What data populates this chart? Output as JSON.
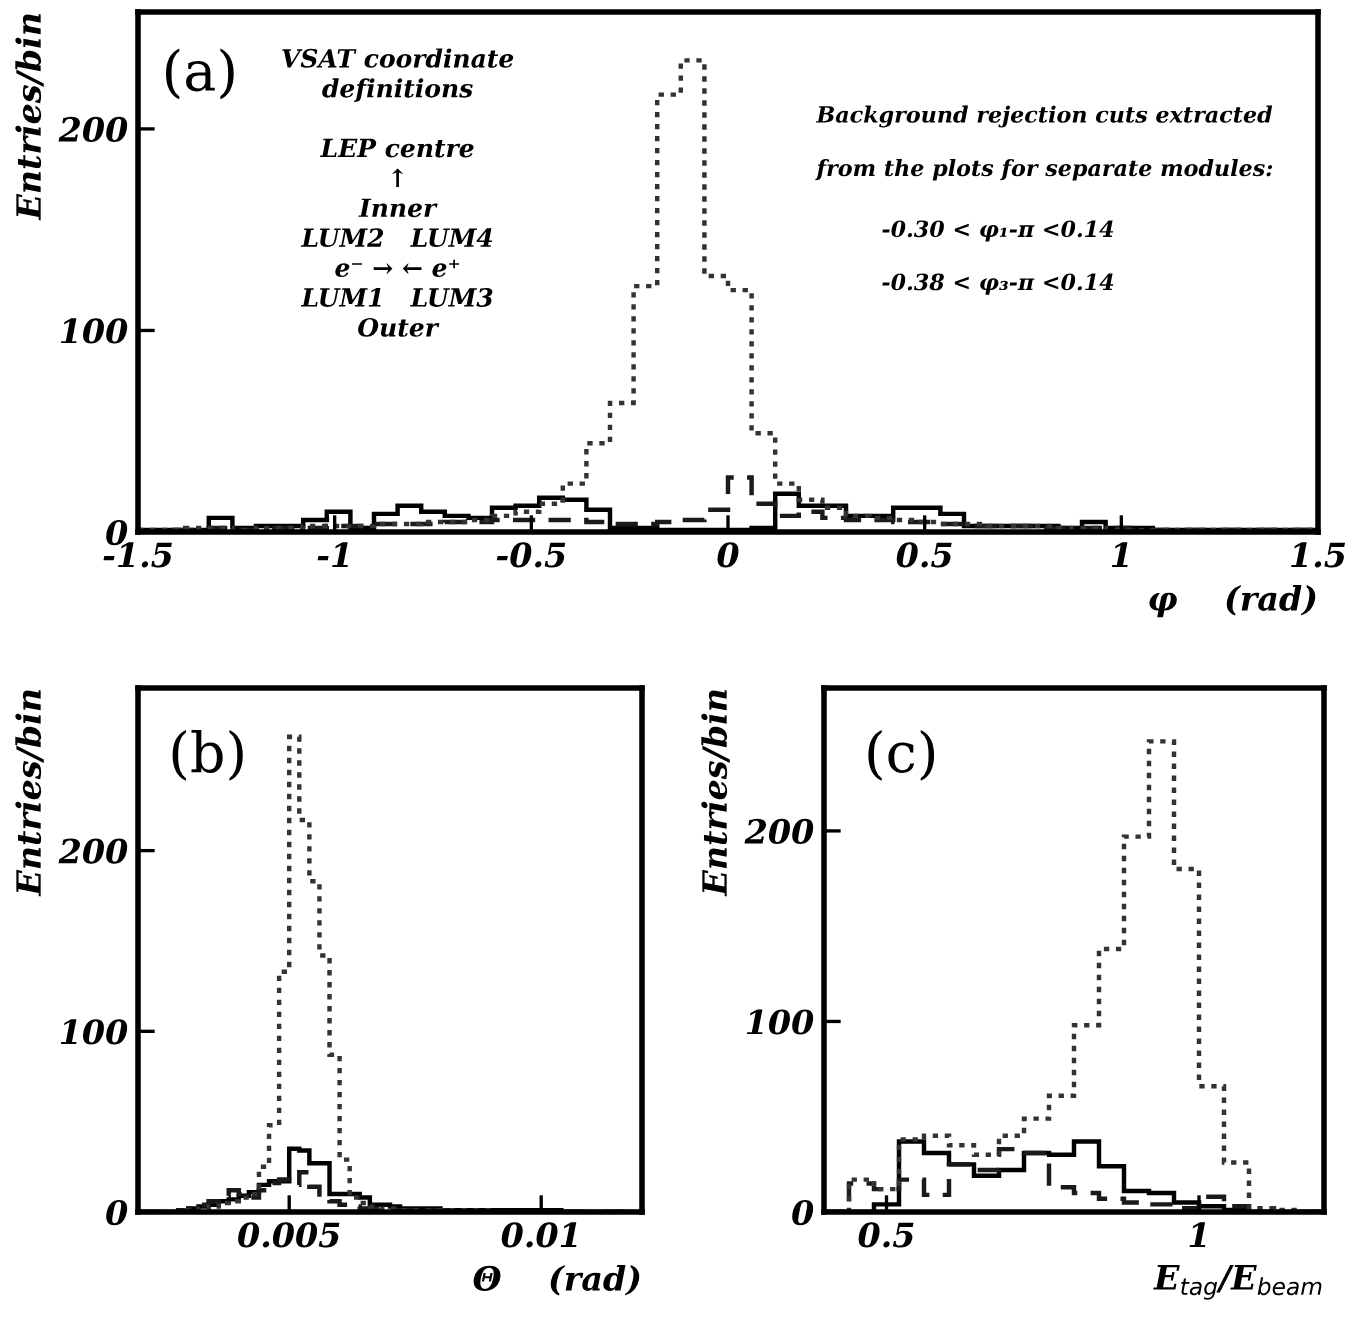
{
  "chart_data": [
    {
      "type": "histogram",
      "ylabel": "Entries/bin",
      "xlabel": "φ    (rad)",
      "xlim": [
        -1.5,
        1.5
      ],
      "xticks": [
        -1.5,
        -1,
        -0.5,
        0,
        0.5,
        1,
        1.5
      ],
      "ylim": [
        0,
        258
      ],
      "yticks": [
        0,
        100,
        200
      ],
      "bins": [
        -1.5,
        -1.44,
        -1.38,
        -1.32,
        -1.26,
        -1.2,
        -1.14,
        -1.08,
        -1.02,
        -0.96,
        -0.9,
        -0.84,
        -0.78,
        -0.72,
        -0.66,
        -0.6,
        -0.54,
        -0.48,
        -0.42,
        -0.36,
        -0.3,
        -0.24,
        -0.18,
        -0.12,
        -0.06,
        0,
        0.06,
        0.12,
        0.18,
        0.24,
        0.3,
        0.36,
        0.42,
        0.48,
        0.54,
        0.6,
        0.66,
        0.72,
        0.78,
        0.84,
        0.9,
        0.96,
        1.02,
        1.08,
        1.14,
        1.2,
        1.26,
        1.32,
        1.38,
        1.44,
        1.5
      ],
      "series": [
        {
          "color": "#000000",
          "line_style": "solid",
          "values": [
            1,
            1,
            1,
            7,
            2,
            3,
            3,
            6,
            10,
            2,
            9,
            13,
            10,
            8,
            7,
            12,
            13,
            17,
            16,
            11,
            2,
            2,
            1,
            1,
            1,
            1,
            2,
            19,
            13,
            13,
            8,
            8,
            12,
            12,
            9,
            3,
            3,
            3,
            3,
            2,
            5,
            2,
            2,
            1,
            1,
            1,
            1,
            1,
            1,
            1
          ]
        },
        {
          "color": "#1a1a1a",
          "line_style": "dashed",
          "values": [
            0,
            1,
            1,
            2,
            1,
            2,
            2,
            2,
            3,
            3,
            4,
            4,
            4,
            5,
            5,
            6,
            6,
            6,
            6,
            5,
            4,
            4,
            5,
            6,
            11,
            27,
            14,
            8,
            10,
            7,
            6,
            6,
            5,
            5,
            4,
            3,
            3,
            3,
            2,
            2,
            2,
            2,
            1,
            1,
            1,
            1,
            1,
            1,
            1,
            1
          ]
        },
        {
          "color": "#333333",
          "line_style": "dotted",
          "values": [
            1,
            1,
            2,
            2,
            1,
            2,
            2,
            3,
            3,
            3,
            4,
            4,
            5,
            5,
            6,
            8,
            10,
            14,
            24,
            44,
            64,
            122,
            217,
            234,
            127,
            120,
            49,
            24,
            16,
            12,
            8,
            7,
            6,
            5,
            4,
            4,
            3,
            3,
            3,
            2,
            2,
            1,
            1,
            1,
            1,
            1,
            1,
            1,
            1,
            1
          ]
        }
      ],
      "annotations": [
        "(a)",
        "VSAT coordinate\ndefinitions\n\nLEP centre\n↑\nInner\nLUM2   LUM4\ne⁻ → ← e⁺\nLUM1   LUM3\nOuter",
        "Background rejection cuts extracted\n\nfrom the plots for separate modules:",
        "-0.30 < φ₁-π <0.14\n\n-0.38 < φ₃-π <0.14"
      ]
    },
    {
      "type": "histogram",
      "ylabel": "Entries/bin",
      "xlabel": "Θ    (rad)",
      "xlim": [
        0.002,
        0.012
      ],
      "xticks": [
        0.005,
        0.01
      ],
      "ylim": [
        0,
        290
      ],
      "yticks": [
        0,
        100,
        200
      ],
      "bins": [
        0.002,
        0.0022,
        0.0024,
        0.0026,
        0.0028,
        0.003,
        0.0032,
        0.0034,
        0.0036,
        0.0038,
        0.004,
        0.0042,
        0.0044,
        0.0046,
        0.0048,
        0.005,
        0.0052,
        0.0054,
        0.0056,
        0.0058,
        0.006,
        0.0062,
        0.0064,
        0.0066,
        0.0068,
        0.007,
        0.0072,
        0.0074,
        0.0076,
        0.0078,
        0.008,
        0.0082,
        0.0084,
        0.0086,
        0.0088,
        0.009,
        0.0092,
        0.0094,
        0.0096,
        0.0098,
        0.01,
        0.0102,
        0.0104,
        0.0106,
        0.0108,
        0.011,
        0.0112,
        0.0114,
        0.0116,
        0.0118,
        0.012
      ],
      "series": [
        {
          "color": "#000000",
          "line_style": "solid",
          "values": [
            0,
            0,
            0,
            0,
            1,
            2,
            3,
            4,
            6,
            7,
            9,
            11,
            15,
            17,
            17,
            35,
            34,
            27,
            27,
            10,
            10,
            10,
            8,
            4,
            4,
            3,
            2,
            2,
            2,
            2,
            1,
            1,
            1,
            1,
            1,
            1,
            1,
            1,
            1,
            1,
            1,
            1,
            0,
            0,
            0,
            0,
            0,
            0,
            0,
            0
          ]
        },
        {
          "color": "#1a1a1a",
          "line_style": "dashed",
          "values": [
            0,
            0,
            0,
            0,
            1,
            2,
            4,
            6,
            9,
            12,
            10,
            8,
            12,
            16,
            18,
            15,
            22,
            14,
            8,
            6,
            4,
            3,
            2,
            2,
            1,
            1,
            1,
            1,
            1,
            1,
            1,
            1,
            0,
            0,
            0,
            0,
            0,
            0,
            0,
            0,
            0,
            0,
            0,
            0,
            0,
            0,
            0,
            0,
            0,
            0
          ]
        },
        {
          "color": "#333333",
          "line_style": "dotted",
          "values": [
            0,
            0,
            0,
            0,
            1,
            1,
            2,
            3,
            5,
            6,
            8,
            10,
            25,
            48,
            133,
            263,
            217,
            183,
            142,
            87,
            29,
            8,
            5,
            3,
            2,
            2,
            1,
            1,
            1,
            1,
            1,
            1,
            1,
            1,
            1,
            0,
            0,
            0,
            0,
            0,
            0,
            0,
            0,
            0,
            0,
            0,
            0,
            0,
            0,
            0
          ]
        }
      ],
      "annotations": [
        "(b)"
      ]
    },
    {
      "type": "histogram",
      "ylabel": "Entries/bin",
      "xlabel": "E$_{tag}$/E$_{beam}$",
      "xlim": [
        0.4,
        1.2
      ],
      "xticks": [
        0.5,
        1
      ],
      "ylim": [
        0,
        275
      ],
      "yticks": [
        0,
        100,
        200
      ],
      "bins": [
        0.4,
        0.44,
        0.48,
        0.52,
        0.56,
        0.6,
        0.64,
        0.68,
        0.72,
        0.76,
        0.8,
        0.84,
        0.88,
        0.92,
        0.96,
        1.0,
        1.04,
        1.08,
        1.12,
        1.16,
        1.2
      ],
      "series": [
        {
          "color": "#000000",
          "line_style": "solid",
          "values": [
            0,
            0,
            4,
            37,
            31,
            25,
            19,
            22,
            31,
            30,
            37,
            24,
            11,
            10,
            5,
            3,
            1,
            0,
            0,
            0
          ]
        },
        {
          "color": "#1a1a1a",
          "line_style": "dashed",
          "values": [
            0,
            15,
            12,
            17,
            9,
            25,
            22,
            33,
            31,
            13,
            10,
            7,
            5,
            4,
            2,
            8,
            3,
            0,
            0,
            0
          ]
        },
        {
          "color": "#333333",
          "line_style": "dotted",
          "values": [
            0,
            17,
            12,
            38,
            40,
            35,
            30,
            40,
            49,
            61,
            98,
            138,
            197,
            247,
            180,
            66,
            26,
            2,
            1,
            0
          ]
        }
      ],
      "annotations": [
        "(c)"
      ]
    }
  ]
}
